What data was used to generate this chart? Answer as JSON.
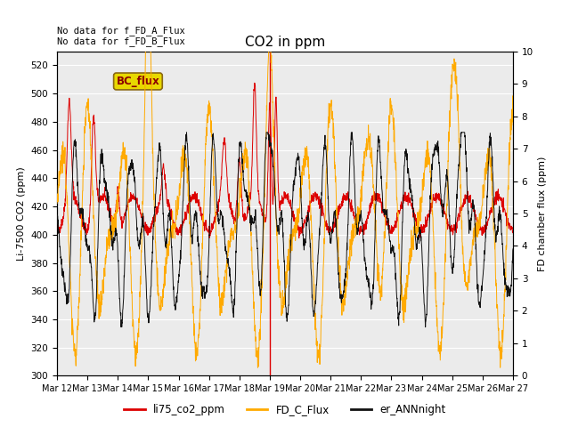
{
  "title": "CO2 in ppm",
  "ylabel_left": "Li-7500 CO2 (ppm)",
  "ylabel_right": "FD chamber flux (ppm)",
  "ylim_left": [
    300,
    530
  ],
  "ylim_right": [
    0.0,
    10.0
  ],
  "yticks_left": [
    300,
    320,
    340,
    360,
    380,
    400,
    420,
    440,
    460,
    480,
    500,
    520
  ],
  "yticks_right": [
    0.0,
    1.0,
    2.0,
    3.0,
    4.0,
    5.0,
    6.0,
    7.0,
    8.0,
    9.0,
    10.0
  ],
  "xtick_labels": [
    "Mar 12",
    "Mar 13",
    "Mar 14",
    "Mar 15",
    "Mar 16",
    "Mar 17",
    "Mar 18",
    "Mar 19",
    "Mar 20",
    "Mar 21",
    "Mar 22",
    "Mar 23",
    "Mar 24",
    "Mar 25",
    "Mar 26",
    "Mar 27"
  ],
  "annotation_top_left": "No data for f_FD_A_Flux\nNo data for f_FD_B_Flux",
  "bc_flux_label": "BC_flux",
  "legend_labels": [
    "li75_co2_ppm",
    "FD_C_Flux",
    "er_ANNnight"
  ],
  "line_colors": [
    "#dd0000",
    "#ffaa00",
    "#111111"
  ],
  "vline_day": 7.0,
  "vline_color": "#dd0000",
  "plot_bg": "#ebebeb"
}
